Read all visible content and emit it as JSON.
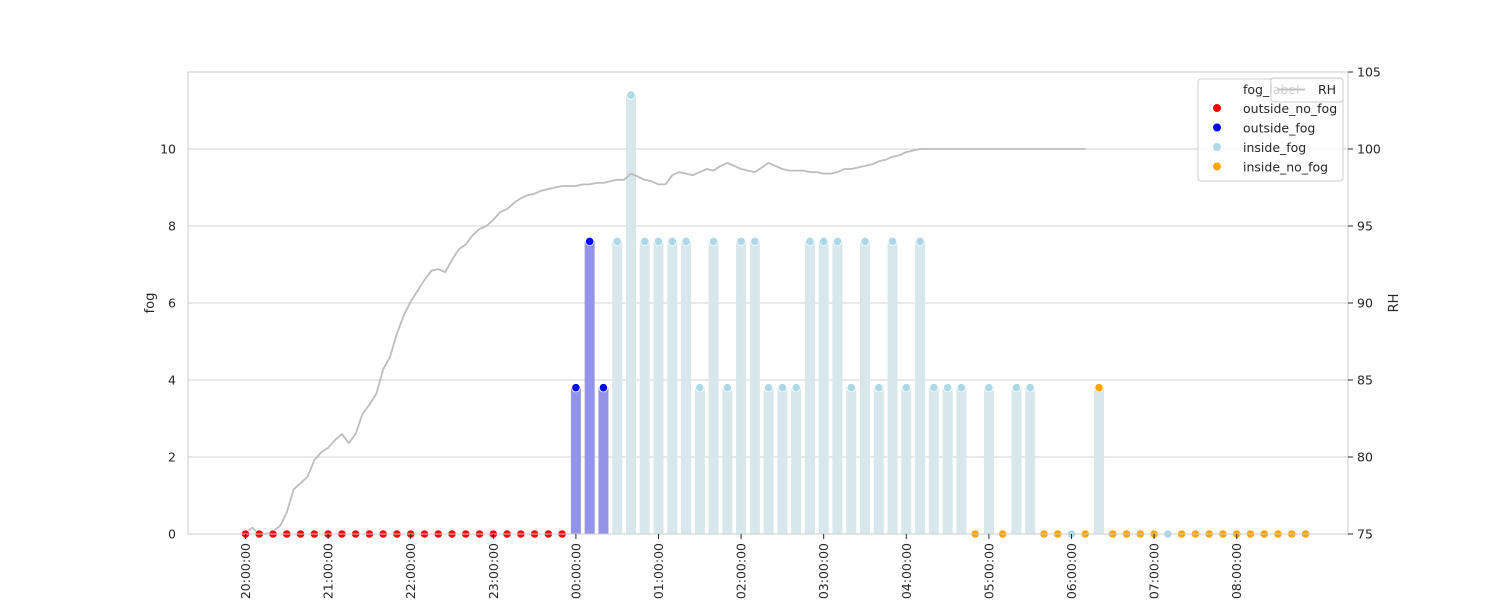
{
  "chart_data": {
    "type": "bar",
    "ylabel_left": "fog",
    "ylabel_right": "RH",
    "ylim_left": [
      0,
      12
    ],
    "ylim_right": [
      75,
      105
    ],
    "y_ticks_left": [
      "0",
      "2",
      "4",
      "6",
      "8",
      "10"
    ],
    "y_ticks_right": [
      "75",
      "80",
      "85",
      "90",
      "95",
      "100",
      "105"
    ],
    "x_tick_labels": [
      "20:00:00",
      "21:00:00",
      "22:00:00",
      "23:00:00",
      "00:00:00",
      "01:00:00",
      "02:00:00",
      "03:00:00",
      "04:00:00",
      "05:00:00",
      "06:00:00",
      "07:00:00",
      "08:00:00"
    ],
    "x_time_start": "20:00:00",
    "x_time_interval": "00:10:00",
    "grid": true,
    "fog_categories": [
      "outside_no_fog",
      "outside_fog",
      "inside_fog",
      "inside_no_fog"
    ],
    "fog_label": [
      "outside_no_fog",
      "outside_no_fog",
      "outside_no_fog",
      "outside_no_fog",
      "outside_no_fog",
      "outside_no_fog",
      "outside_no_fog",
      "outside_no_fog",
      "outside_no_fog",
      "outside_no_fog",
      "outside_no_fog",
      "outside_no_fog",
      "outside_no_fog",
      "outside_no_fog",
      "outside_no_fog",
      "outside_no_fog",
      "outside_no_fog",
      "outside_no_fog",
      "outside_no_fog",
      "outside_no_fog",
      "outside_no_fog",
      "outside_no_fog",
      "outside_no_fog",
      "outside_no_fog",
      "outside_fog",
      "outside_fog",
      "outside_fog",
      "inside_fog",
      "inside_fog",
      "inside_fog",
      "inside_fog",
      "inside_fog",
      "inside_fog",
      "inside_fog",
      "inside_fog",
      "inside_fog",
      "inside_fog",
      "inside_fog",
      "inside_fog",
      "inside_fog",
      "inside_fog",
      "inside_fog",
      "inside_fog",
      "inside_fog",
      "inside_fog",
      "inside_fog",
      "inside_fog",
      "inside_fog",
      "inside_fog",
      "inside_fog",
      "inside_fog",
      "inside_fog",
      "inside_fog",
      "inside_no_fog",
      "inside_fog",
      "inside_no_fog",
      "inside_fog",
      "inside_fog",
      "inside_no_fog",
      "inside_no_fog",
      "inside_fog",
      "inside_no_fog",
      "inside_no_fog",
      "inside_no_fog",
      "inside_no_fog",
      "inside_no_fog",
      "inside_no_fog",
      "inside_fog",
      "inside_no_fog",
      "inside_no_fog",
      "inside_no_fog",
      "inside_no_fog",
      "inside_no_fog",
      "inside_no_fog",
      "inside_no_fog",
      "inside_no_fog",
      "inside_no_fog",
      "inside_no_fog"
    ],
    "fog": [
      0,
      0,
      0,
      0,
      0,
      0,
      0,
      0,
      0,
      0,
      0,
      0,
      0,
      0,
      0,
      0,
      0,
      0,
      0,
      0,
      0,
      0,
      0,
      0,
      3.8,
      7.6,
      3.8,
      7.6,
      11.4,
      7.6,
      7.6,
      7.6,
      7.6,
      3.8,
      7.6,
      3.8,
      7.6,
      7.6,
      3.8,
      3.8,
      3.8,
      7.6,
      7.6,
      7.6,
      3.8,
      7.6,
      3.8,
      7.6,
      3.8,
      7.6,
      3.8,
      3.8,
      3.8,
      0,
      3.8,
      0,
      3.8,
      3.8,
      0,
      0,
      0,
      0,
      3.8,
      0,
      0,
      0,
      0,
      0,
      0,
      0,
      0,
      0,
      0,
      0,
      0,
      0,
      0,
      0
    ],
    "series": [
      {
        "name": "RH",
        "x_interval": "00:05:00",
        "values": [
          75.1,
          75.4,
          75.0,
          75.0,
          75.2,
          75.5,
          76.4,
          77.9,
          78.3,
          78.7,
          79.8,
          80.3,
          80.6,
          81.1,
          81.5,
          80.9,
          81.5,
          82.8,
          83.4,
          84.1,
          85.7,
          86.5,
          88.0,
          89.2,
          90.1,
          90.8,
          91.5,
          92.1,
          92.2,
          92.0,
          92.8,
          93.5,
          93.8,
          94.4,
          94.8,
          95.0,
          95.4,
          95.9,
          96.1,
          96.5,
          96.8,
          97.0,
          97.1,
          97.3,
          97.4,
          97.5,
          97.6,
          97.6,
          97.6,
          97.7,
          97.7,
          97.8,
          97.8,
          97.9,
          98.0,
          98.0,
          98.4,
          98.2,
          98.0,
          97.9,
          97.7,
          97.7,
          98.3,
          98.5,
          98.4,
          98.3,
          98.5,
          98.7,
          98.6,
          98.9,
          99.1,
          98.9,
          98.7,
          98.6,
          98.5,
          98.8,
          99.1,
          98.9,
          98.7,
          98.6,
          98.6,
          98.6,
          98.5,
          98.5,
          98.4,
          98.4,
          98.5,
          98.7,
          98.7,
          98.8,
          98.9,
          99.0,
          99.2,
          99.3,
          99.5,
          99.6,
          99.8,
          99.9,
          100.0,
          100.0,
          100.0,
          100.0,
          100.0,
          100.0,
          100.0,
          100.0,
          100.0,
          100.0,
          100.0,
          100.0,
          100.0,
          100.0,
          100.0,
          100.0,
          100.0,
          100.0,
          100.0,
          100.0,
          100.0,
          100.0,
          100.0,
          100.0,
          100.0
        ]
      }
    ],
    "legend": {
      "placement": "top-right",
      "title": "fog_label",
      "entries": [
        "outside_no_fog",
        "outside_fog",
        "inside_fog",
        "inside_no_fog"
      ],
      "line_entry": "RH"
    },
    "colors": {
      "outside_no_fog": "#ff0000",
      "outside_fog": "#0000ff",
      "inside_fog": "#add8e6",
      "inside_no_fog": "#ffa500",
      "bar_outside_fog": "#9393ea",
      "bar_inside_fog": "#d7e7ec",
      "rh_line": "#bdbdbd",
      "grid": "#d3d3d3",
      "spine": "#cccccc"
    }
  }
}
